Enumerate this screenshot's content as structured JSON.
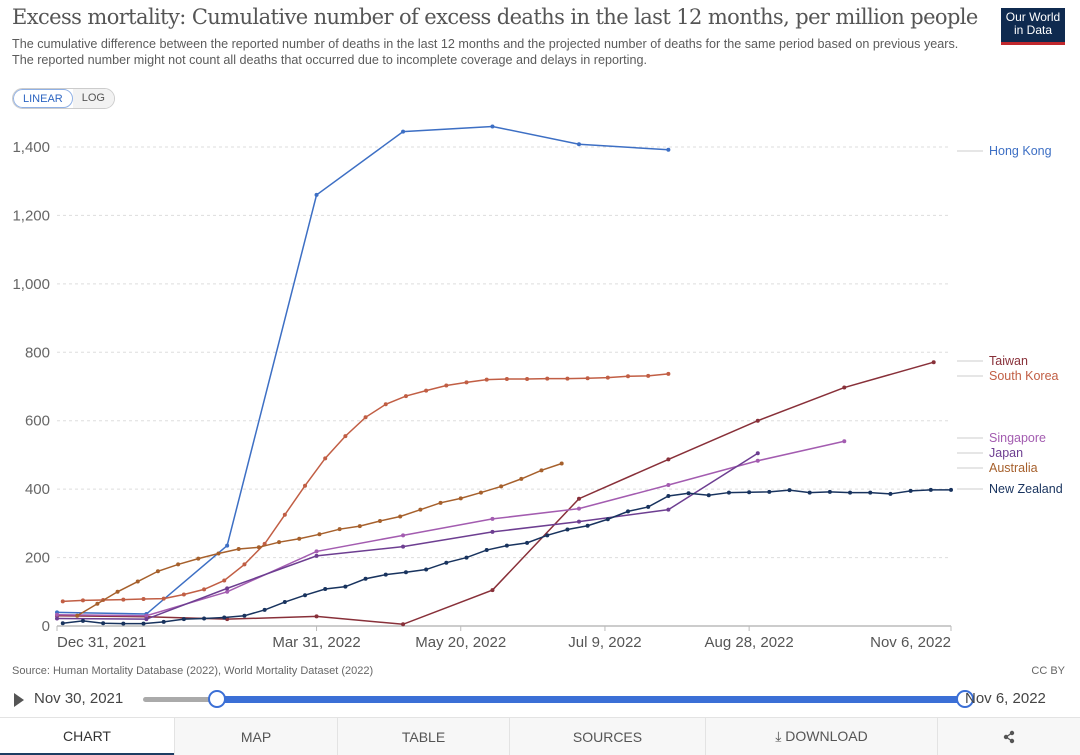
{
  "header": {
    "title": "Excess mortality: Cumulative number of excess deaths in the last 12 months, per million people",
    "subtitle": "The cumulative difference between the reported number of deaths in the last 12 months and the projected number of deaths for the same period based on previous years. The reported number might not count all deaths that occurred due to incomplete coverage and delays in reporting.",
    "logo_line1": "Our World",
    "logo_line2": "in Data"
  },
  "scale_toggle": {
    "linear": "LINEAR",
    "log": "LOG",
    "selected": "LINEAR"
  },
  "chart_data": {
    "type": "line",
    "title": "Excess mortality: Cumulative number of excess deaths in the last 12 months, per million people",
    "xlabel": "",
    "ylabel": "",
    "xlim": [
      "2021-12-31",
      "2022-11-06"
    ],
    "ylim": [
      0,
      1500
    ],
    "y_ticks": [
      0,
      200,
      400,
      600,
      800,
      1000,
      1200,
      1400
    ],
    "y_tick_labels": [
      "0",
      "200",
      "400",
      "600",
      "800",
      "1,000",
      "1,200",
      "1,400"
    ],
    "x_ticks": [
      "2021-12-31",
      "2022-03-31",
      "2022-05-20",
      "2022-07-09",
      "2022-08-28",
      "2022-11-06"
    ],
    "x_tick_labels": [
      "Dec 31, 2021",
      "Mar 31, 2022",
      "May 20, 2022",
      "Jul 9, 2022",
      "Aug 28, 2022",
      "Nov 6, 2022"
    ],
    "grid": "horizontal dashed",
    "legend": "right, inline labels",
    "series": [
      {
        "name": "Hong Kong",
        "color": "#3d6fc4",
        "start": "2021-12-31",
        "interval": "monthly",
        "values": [
          40,
          35,
          235,
          1260,
          1445,
          1460,
          1408,
          1392
        ]
      },
      {
        "name": "Taiwan",
        "color": "#883039",
        "start": "2021-12-31",
        "interval": "monthly",
        "values": [
          30,
          27,
          20,
          28,
          5,
          105,
          372,
          487,
          600,
          697,
          771
        ]
      },
      {
        "name": "South Korea",
        "color": "#c15e44",
        "start": "2022-01-02",
        "interval": "weekly",
        "values": [
          72,
          75,
          76,
          77,
          79,
          80,
          92,
          107,
          133,
          180,
          240,
          325,
          410,
          490,
          555,
          610,
          648,
          672,
          688,
          703,
          712,
          720,
          722,
          722,
          723,
          723,
          724,
          726,
          730,
          731,
          737
        ]
      },
      {
        "name": "Singapore",
        "color": "#a35cb0",
        "start": "2021-12-31",
        "interval": "monthly",
        "values": [
          33,
          30,
          100,
          218,
          265,
          313,
          343,
          412,
          483,
          540
        ]
      },
      {
        "name": "Japan",
        "color": "#6d3e91",
        "start": "2021-12-31",
        "interval": "monthly",
        "values": [
          22,
          20,
          110,
          205,
          232,
          275,
          305,
          340,
          505
        ]
      },
      {
        "name": "Australia",
        "color": "#a6602c",
        "start": "2022-01-07",
        "interval": "weekly",
        "values": [
          30,
          65,
          100,
          130,
          160,
          180,
          197,
          212,
          225,
          230,
          245,
          255,
          268,
          283,
          292,
          307,
          320,
          340,
          360,
          373,
          390,
          408,
          430,
          455,
          475
        ]
      },
      {
        "name": "New Zealand",
        "color": "#18335e",
        "start": "2022-01-02",
        "interval": "weekly",
        "values": [
          8,
          15,
          8,
          7,
          7,
          12,
          20,
          22,
          25,
          30,
          47,
          70,
          90,
          108,
          115,
          138,
          150,
          157,
          165,
          185,
          200,
          222,
          235,
          243,
          265,
          282,
          293,
          312,
          335,
          348,
          380,
          388,
          382,
          390,
          391,
          392,
          397,
          390,
          392,
          390,
          390,
          386,
          395,
          398,
          398
        ]
      }
    ]
  },
  "footer": {
    "source": "Source: Human Mortality Database (2022), World Mortality Dataset (2022)",
    "license": "CC BY"
  },
  "timeline": {
    "start_label": "Nov 30, 2021",
    "end_label": "Nov 6, 2022"
  },
  "tabs": [
    {
      "label": "CHART",
      "active": true
    },
    {
      "label": "MAP"
    },
    {
      "label": "TABLE"
    },
    {
      "label": "SOURCES"
    },
    {
      "label": "⤓ DOWNLOAD"
    },
    {
      "label": "share",
      "icon": "share-icon"
    }
  ]
}
